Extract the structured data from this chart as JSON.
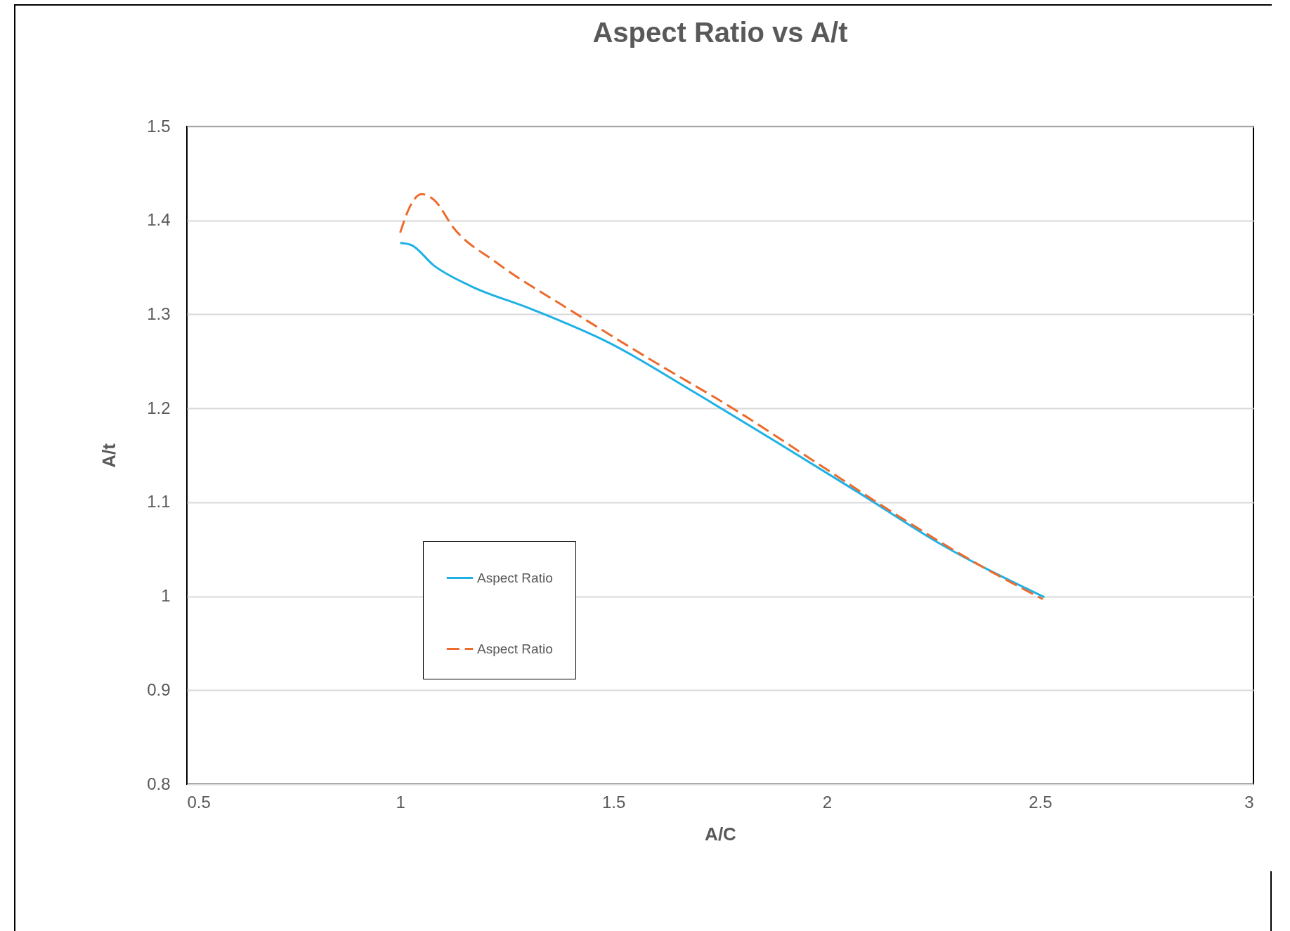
{
  "chart_data": {
    "type": "line",
    "title": "Aspect Ratio vs A/t",
    "xlabel": "A/C",
    "ylabel": "A/t",
    "xlim": [
      0.5,
      3
    ],
    "xticks": [
      0.5,
      1,
      1.5,
      2,
      2.5,
      3
    ],
    "ylim": [
      0.8,
      1.5
    ],
    "yticks": [
      0.8,
      0.9,
      1,
      1.1,
      1.2,
      1.3,
      1.4,
      1.5
    ],
    "grid": "y",
    "legend": "bottom left",
    "marker": "none",
    "series": [
      {
        "name": "Aspect Ratio",
        "color": "#1fb1e6",
        "line_style": "solid",
        "x": [
          1.0,
          1.025,
          1.079,
          1.166,
          1.3,
          1.493,
          1.686,
          1.879,
          2.072,
          2.265,
          2.51
        ],
        "values": [
          1.376,
          1.374,
          1.352,
          1.33,
          1.307,
          1.269,
          1.218,
          1.165,
          1.111,
          1.056,
          0.999
        ]
      },
      {
        "name": "Aspect Ratio",
        "color": "#ec6b2d",
        "line_style": "dashed",
        "x": [
          1.0,
          1.021,
          1.05,
          1.079,
          1.127,
          1.223,
          1.397,
          1.59,
          1.783,
          1.976,
          2.169,
          2.362,
          2.506
        ],
        "values": [
          1.387,
          1.413,
          1.428,
          1.422,
          1.391,
          1.356,
          1.305,
          1.251,
          1.199,
          1.142,
          1.085,
          1.032,
          0.997
        ]
      }
    ]
  }
}
